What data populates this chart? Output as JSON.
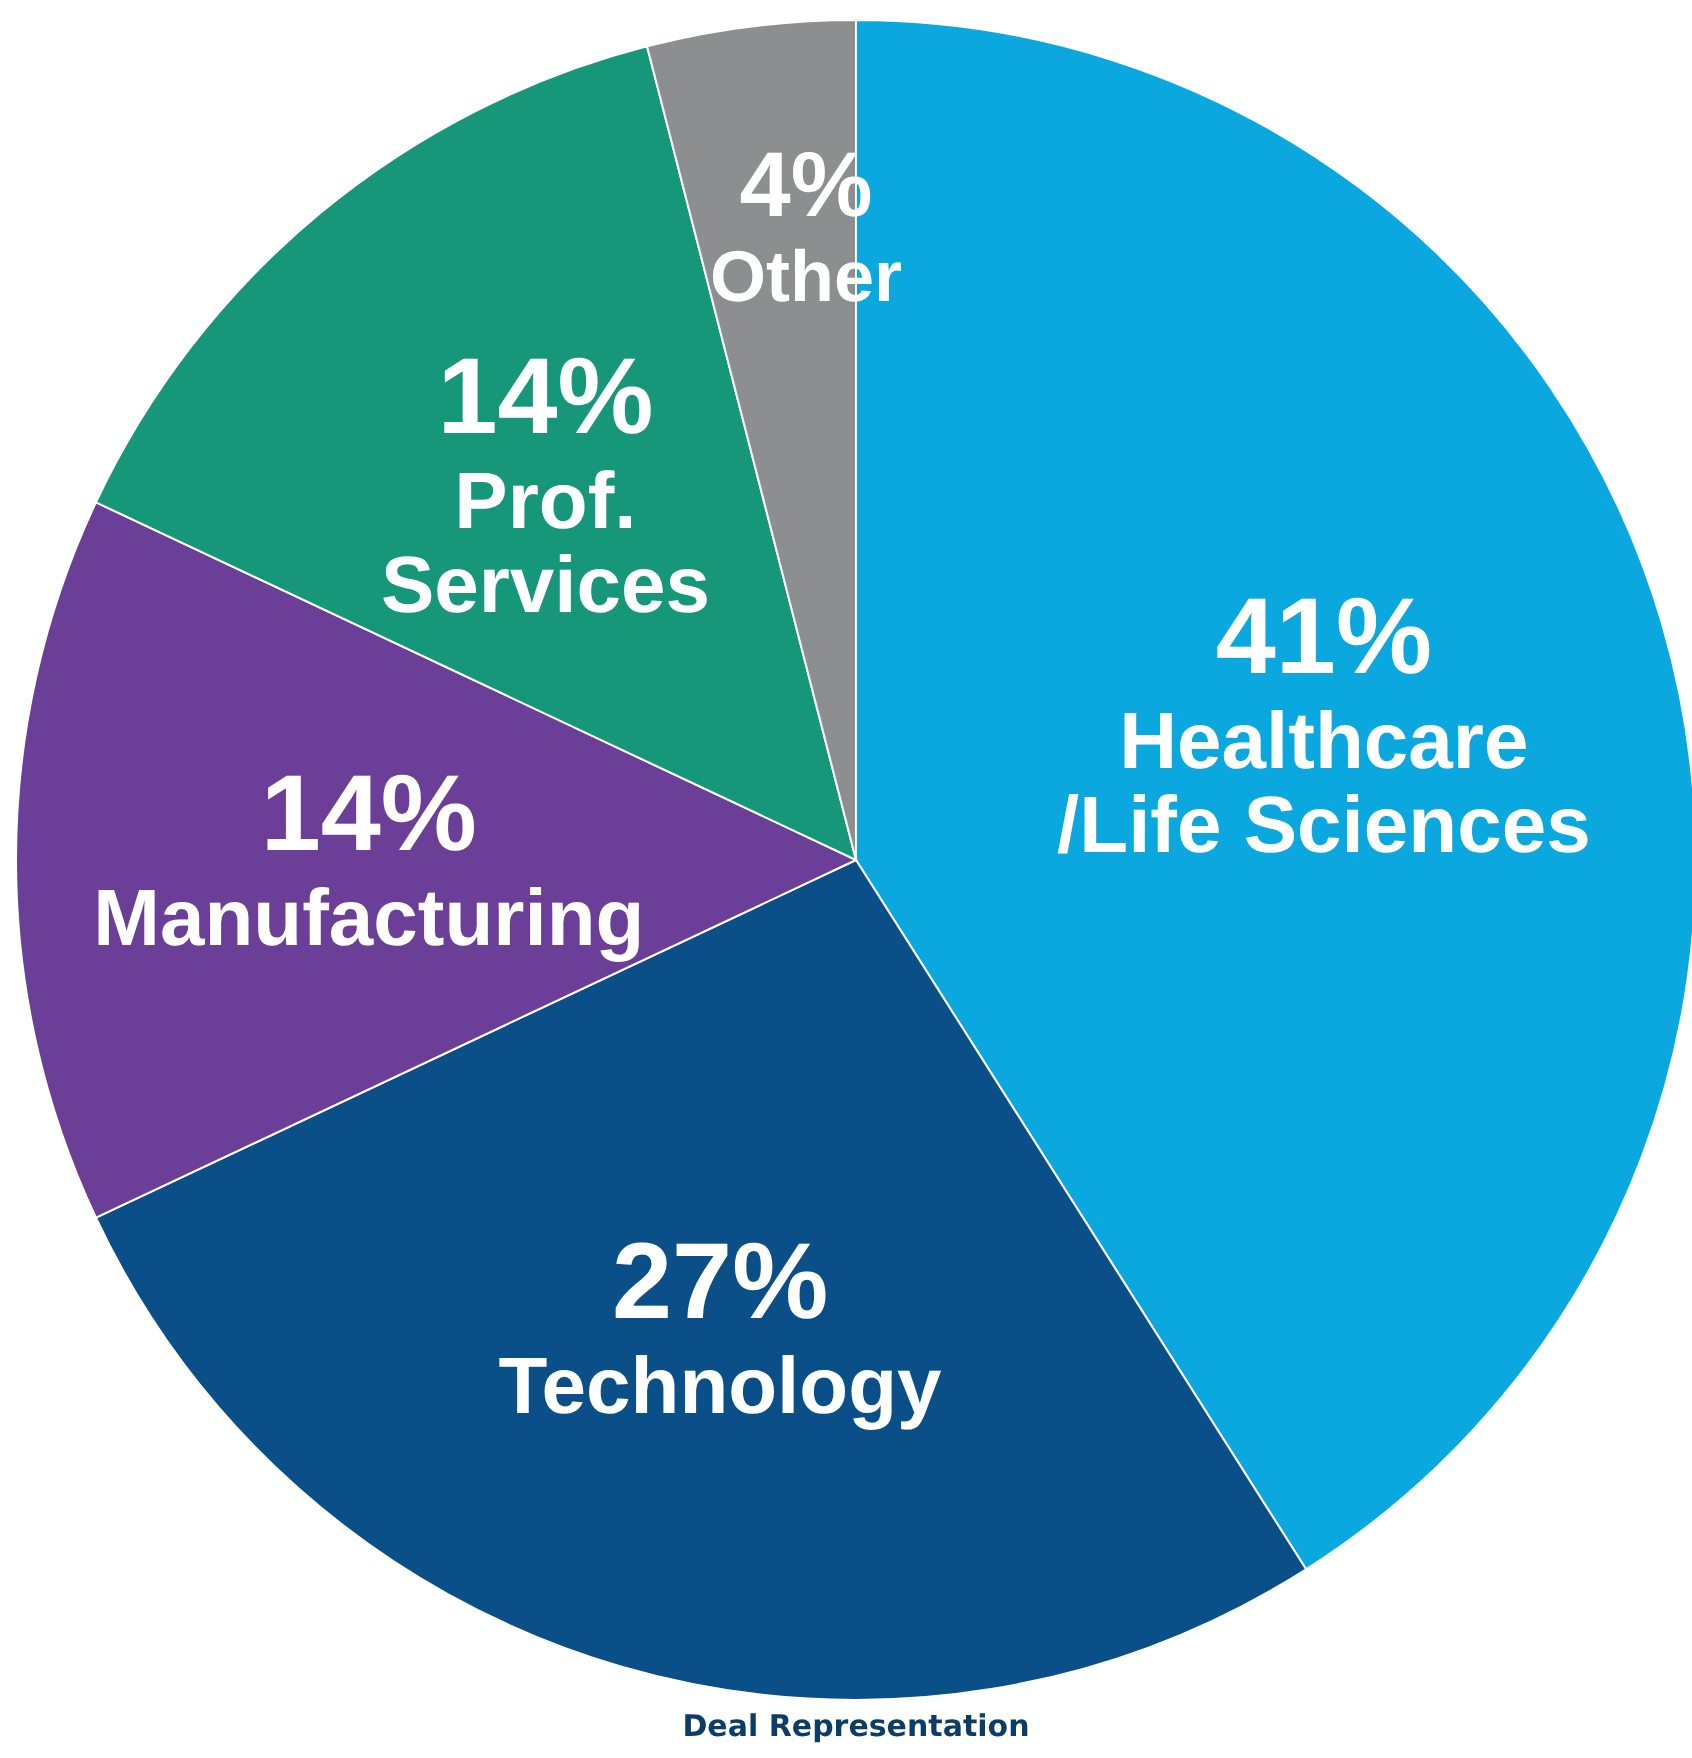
{
  "chart_data": {
    "type": "pie",
    "title": "Deal Representation",
    "categories": [
      "Healthcare\n/Life Sciences",
      "Technology",
      "Manufacturing",
      "Prof.\nServices",
      "Other"
    ],
    "values": [
      41,
      27,
      14,
      14,
      4
    ],
    "colors": [
      "#0aa8de",
      "#0a4f88",
      "#6b3f98",
      "#17977a",
      "#8c8e90"
    ],
    "value_labels": [
      "41%",
      "27%",
      "14%",
      "14%",
      "4%"
    ]
  }
}
